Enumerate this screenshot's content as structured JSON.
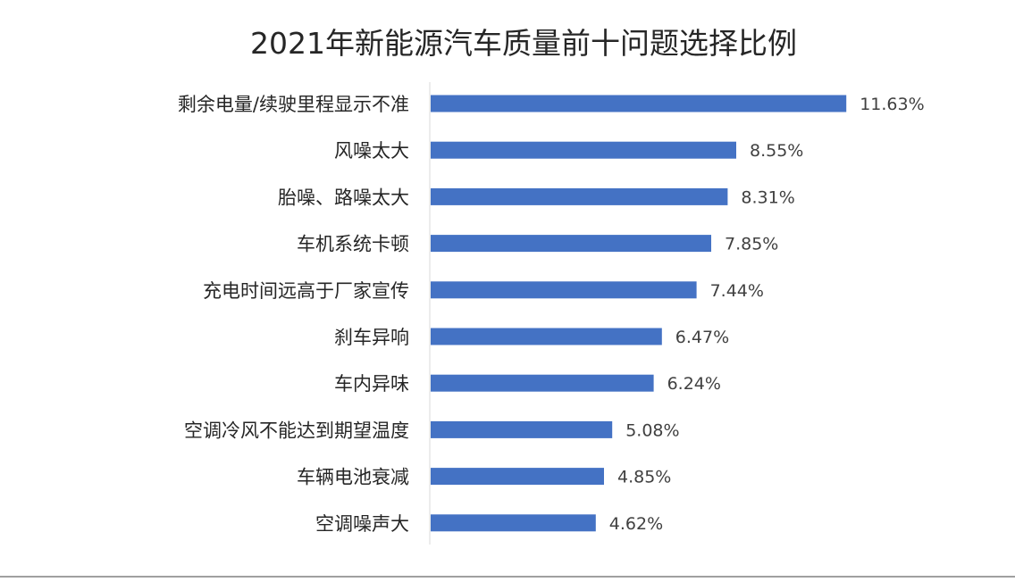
{
  "chart_data": {
    "type": "bar",
    "orientation": "horizontal",
    "title": "2021年新能源汽车质量前十问题选择比例",
    "xlabel": "",
    "ylabel": "",
    "categories": [
      "剩余电量/续驶里程显示不准",
      "风噪太大",
      "胎噪、路噪太大",
      "车机系统卡顿",
      "充电时间远高于厂家宣传",
      "刹车异响",
      "车内异味",
      "空调冷风不能达到期望温度",
      "车辆电池衰减",
      "空调噪声大"
    ],
    "values": [
      11.63,
      8.55,
      8.31,
      7.85,
      7.44,
      6.47,
      6.24,
      5.08,
      4.85,
      4.62
    ],
    "value_labels": [
      "11.63%",
      "8.55%",
      "8.31%",
      "7.85%",
      "7.44%",
      "6.47%",
      "6.24%",
      "5.08%",
      "4.85%",
      "4.62%"
    ],
    "xlim": [
      0,
      12
    ],
    "unit": "%",
    "grid": false,
    "legend": "none",
    "colors": {
      "bar": "#4472C4",
      "axis": "#d9d9d9",
      "rule": "#808080"
    }
  }
}
